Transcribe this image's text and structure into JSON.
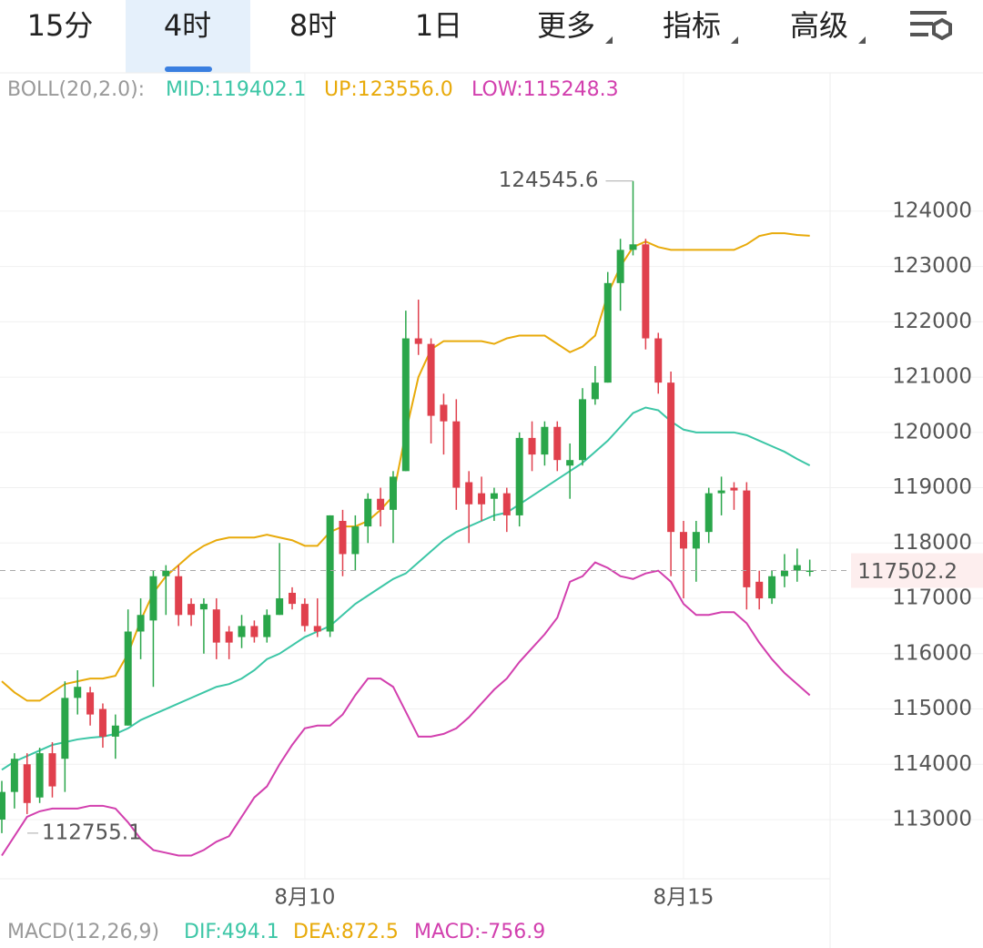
{
  "tabs": [
    "15分",
    "4时",
    "8时",
    "1日",
    "更多",
    "指标",
    "高级"
  ],
  "boll": {
    "label": "BOLL(20,2.0):",
    "mid": "MID:119402.1",
    "up": "UP:123556.0",
    "low": "LOW:115248.3"
  },
  "macd": {
    "label": "MACD(12,26,9)",
    "dif": "DIF:494.1",
    "dea": "DEA:872.5",
    "macd": "MACD:-756.9"
  },
  "chart_data": {
    "type": "candlestick",
    "categories": [
      null,
      null,
      null,
      null,
      null,
      null,
      null,
      null,
      null,
      null,
      null,
      null,
      null,
      null,
      null,
      null,
      null,
      null,
      null,
      null,
      null,
      null,
      null,
      null,
      "8月10",
      null,
      null,
      null,
      null,
      null,
      null,
      null,
      null,
      null,
      null,
      null,
      null,
      null,
      null,
      null,
      null,
      null,
      null,
      null,
      null,
      null,
      null,
      null,
      null,
      null,
      null,
      null,
      null,
      null,
      "8月15",
      null,
      null,
      null,
      null,
      null,
      null,
      null,
      null,
      null,
      null
    ],
    "open": [
      113000,
      113500,
      114000,
      113400,
      114200,
      114100,
      115200,
      115300,
      115000,
      114500,
      114700,
      116400,
      116600,
      117400,
      117400,
      116900,
      116800,
      116800,
      116400,
      116300,
      116500,
      116300,
      116700,
      117100,
      116900,
      116500,
      116400,
      118400,
      117800,
      118300,
      118800,
      118600,
      119300,
      121700,
      121600,
      120500,
      120200,
      119100,
      118900,
      118800,
      118900,
      118500,
      119900,
      119600,
      120100,
      119400,
      119500,
      120600,
      120900,
      122700,
      123300,
      123400,
      121700,
      120900,
      118200,
      117900,
      118200,
      118900,
      119000,
      118950,
      117300,
      117000,
      117400,
      117500,
      117500
    ],
    "high": [
      113700,
      114200,
      114200,
      114300,
      114400,
      115500,
      115700,
      115400,
      115100,
      114900,
      116800,
      117000,
      117500,
      117600,
      117600,
      117000,
      117000,
      117000,
      116500,
      116700,
      116600,
      116800,
      118000,
      117200,
      117000,
      117000,
      118500,
      118600,
      118500,
      118900,
      119000,
      119300,
      122200,
      122400,
      121700,
      120700,
      120600,
      119300,
      119200,
      119000,
      119000,
      120000,
      120200,
      120200,
      120200,
      119800,
      120800,
      121200,
      122900,
      123500,
      124545.6,
      123500,
      121800,
      121100,
      118400,
      118400,
      119000,
      119200,
      119100,
      119100,
      117500,
      117500,
      117800,
      117900,
      117700
    ],
    "low": [
      112755.1,
      113200,
      113100,
      113300,
      113400,
      113500,
      114900,
      114700,
      114300,
      114100,
      114700,
      115900,
      115400,
      116700,
      116500,
      116500,
      116000,
      115900,
      115900,
      116100,
      116200,
      116200,
      116700,
      116800,
      116400,
      116300,
      116300,
      117400,
      117500,
      118000,
      118300,
      118000,
      119300,
      121400,
      119800,
      119600,
      118600,
      118000,
      118400,
      118400,
      118200,
      118300,
      119300,
      119400,
      119300,
      118800,
      119400,
      120500,
      120900,
      122200,
      123200,
      121500,
      120700,
      117400,
      117000,
      117300,
      118000,
      118500,
      118600,
      116800,
      116800,
      116900,
      117200,
      117300,
      117400
    ],
    "close": [
      113500,
      114100,
      113300,
      114200,
      113600,
      115200,
      115400,
      114900,
      114500,
      114700,
      116400,
      116700,
      117400,
      117500,
      116700,
      116700,
      116900,
      116200,
      116200,
      116500,
      116300,
      116700,
      117000,
      116900,
      116500,
      116400,
      118500,
      117800,
      118300,
      118800,
      118600,
      119200,
      121700,
      121600,
      120300,
      120200,
      119000,
      118700,
      118700,
      118900,
      118500,
      119900,
      119600,
      120100,
      119500,
      119500,
      120600,
      120900,
      122700,
      123300,
      123400,
      121700,
      120900,
      118200,
      117900,
      118200,
      118900,
      118950,
      118950,
      117200,
      117000,
      117400,
      117500,
      117600,
      117502.2
    ],
    "up_color": "#2aa64a",
    "down_color": "#e0404d",
    "lines": [
      {
        "color": "#e8aa0a",
        "values": [
          115500,
          115300,
          115150,
          115150,
          115300,
          115450,
          115500,
          115550,
          115550,
          115600,
          116000,
          116600,
          117100,
          117400,
          117600,
          117800,
          117950,
          118050,
          118100,
          118100,
          118100,
          118150,
          118100,
          118050,
          117950,
          117950,
          118200,
          118300,
          118300,
          118400,
          118600,
          118850,
          120000,
          121000,
          121500,
          121650,
          121650,
          121650,
          121650,
          121600,
          121700,
          121750,
          121750,
          121750,
          121600,
          121450,
          121550,
          121750,
          122500,
          123000,
          123350,
          123450,
          123350,
          123300,
          123300,
          123300,
          123300,
          123300,
          123300,
          123400,
          123550,
          123600,
          123600,
          123570,
          123556.0
        ]
      },
      {
        "color": "#3cc6a6",
        "values": [
          113900,
          114050,
          114150,
          114250,
          114350,
          114400,
          114450,
          114480,
          114500,
          114550,
          114650,
          114800,
          114900,
          115000,
          115100,
          115200,
          115300,
          115400,
          115450,
          115550,
          115700,
          115900,
          116000,
          116150,
          116300,
          116400,
          116500,
          116700,
          116900,
          117050,
          117200,
          117350,
          117450,
          117650,
          117850,
          118050,
          118200,
          118300,
          118400,
          118500,
          118550,
          118700,
          118850,
          119000,
          119150,
          119300,
          119450,
          119650,
          119850,
          120100,
          120350,
          120450,
          120400,
          120200,
          120050,
          120000,
          120000,
          120000,
          120000,
          119950,
          119850,
          119750,
          119650,
          119520,
          119402.1
        ]
      },
      {
        "color": "#d23fae",
        "values": [
          112350,
          112700,
          113050,
          113150,
          113200,
          113200,
          113200,
          113250,
          113250,
          113200,
          112950,
          112650,
          112450,
          112400,
          112350,
          112350,
          112450,
          112600,
          112700,
          113050,
          113400,
          113600,
          114000,
          114350,
          114650,
          114700,
          114700,
          114900,
          115250,
          115550,
          115550,
          115400,
          114950,
          114500,
          114500,
          114550,
          114650,
          114850,
          115100,
          115350,
          115550,
          115850,
          116100,
          116350,
          116650,
          117300,
          117400,
          117650,
          117550,
          117400,
          117350,
          117450,
          117500,
          117300,
          116900,
          116700,
          116700,
          116750,
          116750,
          116550,
          116200,
          115900,
          115650,
          115450,
          115248.3
        ]
      }
    ],
    "ylim": [
      111930,
      126500
    ],
    "yticks": [
      113000,
      114000,
      115000,
      116000,
      117000,
      118000,
      119000,
      120000,
      121000,
      122000,
      123000,
      124000
    ],
    "grid": true
  }
}
